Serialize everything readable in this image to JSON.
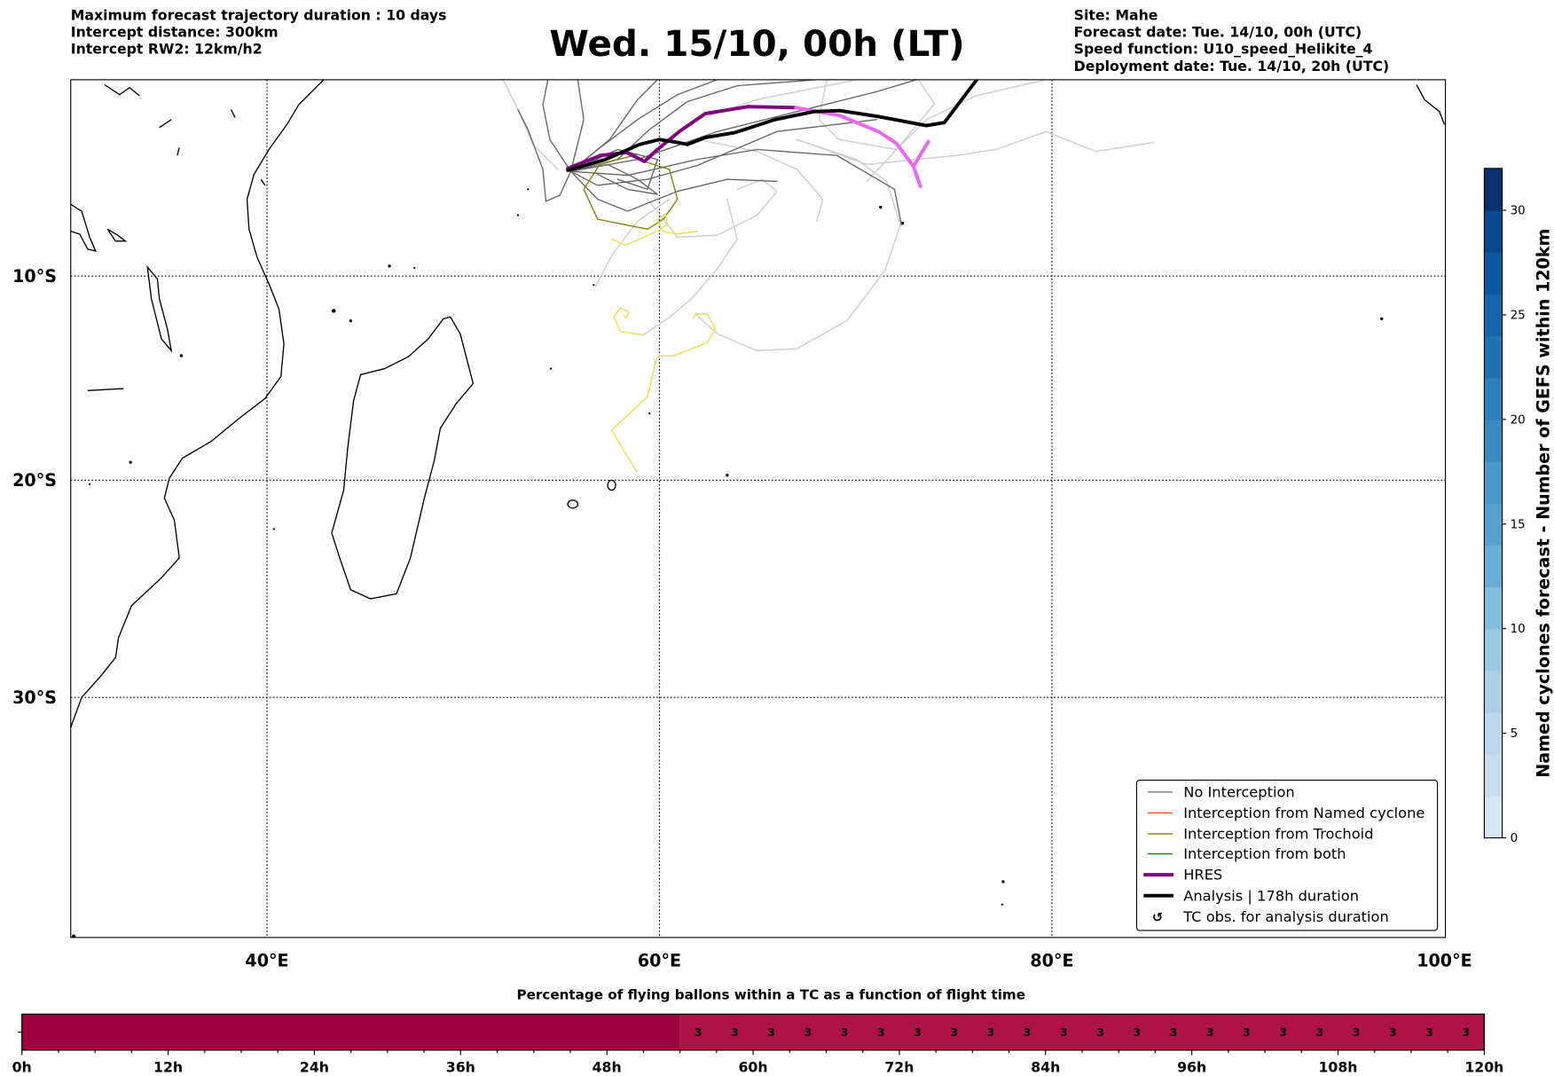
{
  "header": {
    "left": [
      "Maximum forecast trajectory duration : 10 days",
      "Intercept distance: 300km",
      "Intercept RW2: 12km/h2"
    ],
    "title": "Wed. 15/10, 00h (LT)",
    "right": [
      "Site: Mahe",
      "Forecast date: Tue. 14/10, 00h (UTC)",
      "Speed function: U10_speed_Helikite_4",
      "Deployment date: Tue. 14/10, 20h (UTC)"
    ]
  },
  "map": {
    "lon_labels": [
      "40°E",
      "60°E",
      "80°E",
      "100°E"
    ],
    "lat_labels": [
      "10°S",
      "20°S",
      "30°S"
    ]
  },
  "legend": {
    "items": [
      {
        "label": "No Interception",
        "color": "#666666"
      },
      {
        "label": "Interception from Named cyclone",
        "color": "#ff4500"
      },
      {
        "label": "Interception from Trochoid",
        "color": "#808000"
      },
      {
        "label": "Interception from both",
        "color": "#008000"
      },
      {
        "label": "HRES",
        "color": "#800080"
      },
      {
        "label": "Analysis | 178h duration",
        "color": "#000000"
      },
      {
        "label": "TC obs. for analysis duration",
        "icon": "cyclone-symbol"
      }
    ]
  },
  "colorbar": {
    "label": "Named cyclones forecast - Number of GEFS within 120km",
    "ticks": [
      "0",
      "5",
      "10",
      "15",
      "20",
      "25",
      "30"
    ],
    "tick_values": [
      0,
      5,
      10,
      15,
      20,
      25,
      30
    ],
    "min": 0,
    "max": 32,
    "step": 2,
    "colors": [
      "#d6e6f4",
      "#cadef0",
      "#bdd7ec",
      "#abd0e6",
      "#9ac8e0",
      "#84bcdb",
      "#6aaed6",
      "#58a1cf",
      "#4b98ca",
      "#3a8ac2",
      "#2e7ebc",
      "#2171b5",
      "#1764ab",
      "#0e58a2",
      "#08488e",
      "#08306b"
    ]
  },
  "flight_bar": {
    "title": "Percentage of flying ballons within a TC as a function of flight time",
    "tick_labels": [
      "0h",
      "12h",
      "24h",
      "36h",
      "48h",
      "60h",
      "72h",
      "84h",
      "96h",
      "108h",
      "120h"
    ],
    "max_hours": 120,
    "empty_until_hours": 54,
    "empty_color": "#9e003f",
    "cell_color": "#ad1346",
    "cell_hours": 3,
    "values": [
      "3",
      "3",
      "3",
      "3",
      "3",
      "3",
      "3",
      "3",
      "3",
      "3",
      "3",
      "3",
      "3",
      "3",
      "3",
      "3",
      "3",
      "3",
      "3",
      "3",
      "3",
      "3"
    ]
  }
}
